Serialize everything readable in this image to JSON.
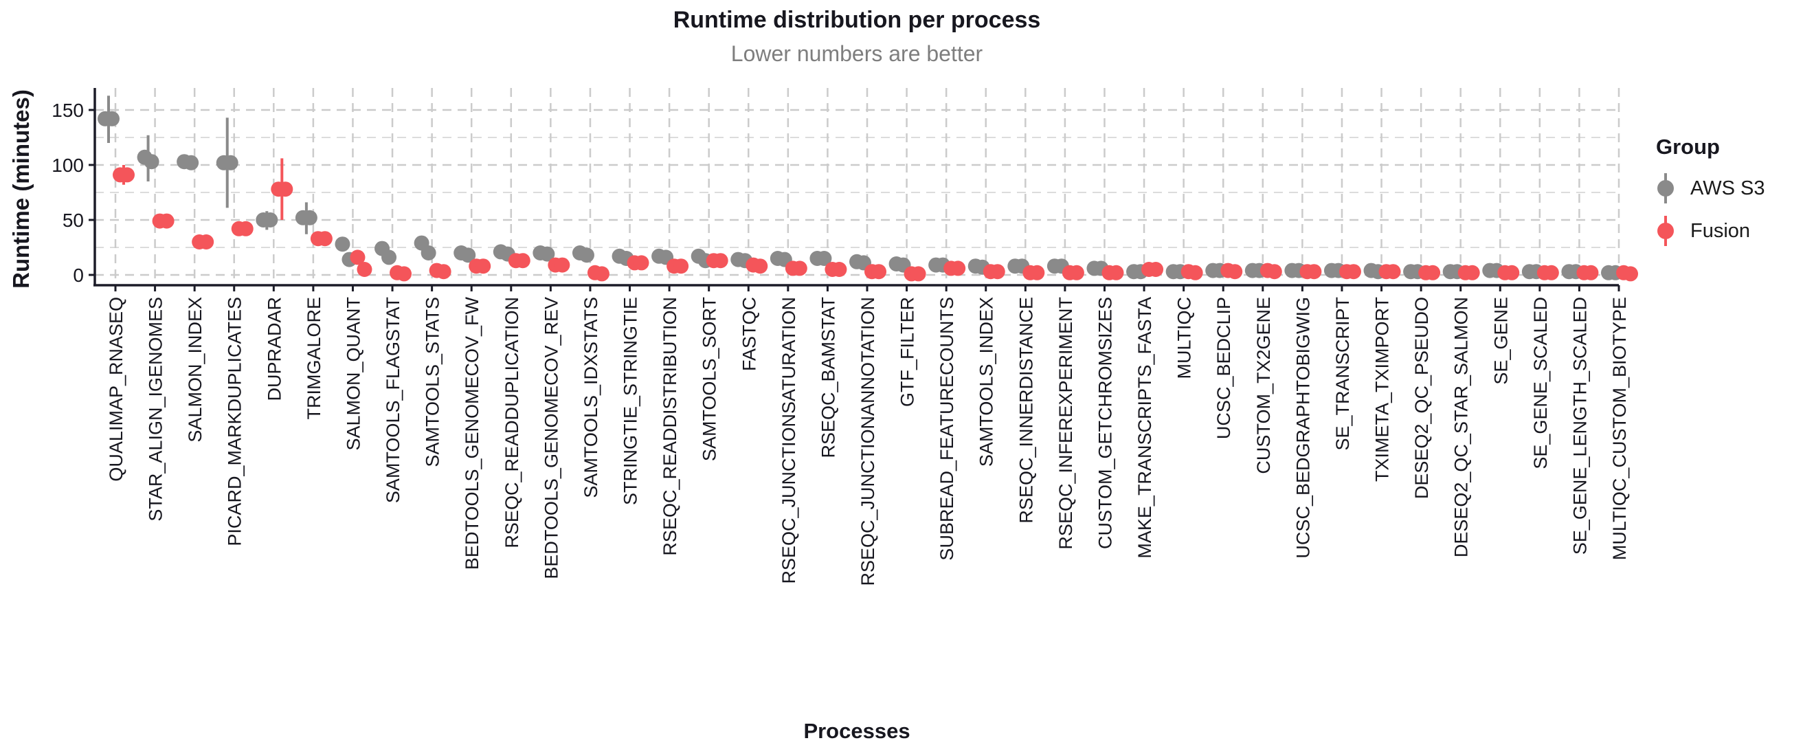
{
  "chart_data": {
    "type": "scatter",
    "title": "Runtime distribution per process",
    "subtitle": "Lower numbers are better",
    "xlabel": "Processes",
    "ylabel": "Runtime (minutes)",
    "ylim": [
      0,
      165
    ],
    "y_ticks": [
      0,
      50,
      100,
      150
    ],
    "grid": "dashed",
    "legend_position": "right",
    "legend": {
      "title": "Group",
      "entries": [
        {
          "label": "AWS S3",
          "color": "#8A8A8A"
        },
        {
          "label": "Fusion",
          "color": "#F4555A"
        }
      ]
    },
    "colors": {
      "aws_s3": "#8A8A8A",
      "fusion": "#F4555A",
      "grid": "#CBCBCB",
      "grid_minor": "#D8D8D8",
      "axis": "#1C1C28",
      "title_text": "#17171F",
      "subtitle_text": "#7E7E7E"
    },
    "categories": [
      "QUALIMAP_RNASEQ",
      "STAR_ALIGN_IGENOMES",
      "SALMON_INDEX",
      "PICARD_MARKDUPLICATES",
      "DUPRADAR",
      "TRIMGALORE",
      "SALMON_QUANT",
      "SAMTOOLS_FLAGSTAT",
      "SAMTOOLS_STATS",
      "BEDTOOLS_GENOMECOV_FW",
      "RSEQC_READDUPLICATION",
      "BEDTOOLS_GENOMECOV_REV",
      "SAMTOOLS_IDXSTATS",
      "STRINGTIE_STRINGTIE",
      "RSEQC_READDISTRIBUTION",
      "SAMTOOLS_SORT",
      "FASTQC",
      "RSEQC_JUNCTIONSATURATION",
      "RSEQC_BAMSTAT",
      "RSEQC_JUNCTIONANNOTATION",
      "GTF_FILTER",
      "SUBREAD_FEATURECOUNTS",
      "SAMTOOLS_INDEX",
      "RSEQC_INNERDISTANCE",
      "RSEQC_INFEREXPERIMENT",
      "CUSTOM_GETCHROMSIZES",
      "MAKE_TRANSCRIPTS_FASTA",
      "MULTIQC",
      "UCSC_BEDCLIP",
      "CUSTOM_TX2GENE",
      "UCSC_BEDGRAPHTOBIGWIG",
      "SE_TRANSCRIPT",
      "TXIMETA_TXIMPORT",
      "DESEQ2_QC_PSEUDO",
      "DESEQ2_QC_STAR_SALMON",
      "SE_GENE",
      "SE_GENE_SCALED",
      "SE_GENE_LENGTH_SCALED",
      "MULTIQC_CUSTOM_BIOTYPE"
    ],
    "series": [
      {
        "name": "AWS S3",
        "color": "#8A8A8A",
        "points": [
          {
            "runs": [
              142,
              142
            ],
            "range": [
              120,
              163
            ]
          },
          {
            "runs": [
              107,
              103
            ],
            "range": [
              85,
              127
            ]
          },
          {
            "runs": [
              103,
              102
            ],
            "range": null
          },
          {
            "runs": [
              102,
              102
            ],
            "range": [
              61,
              143
            ]
          },
          {
            "runs": [
              50,
              50
            ],
            "range": [
              41,
              58
            ]
          },
          {
            "runs": [
              52,
              52
            ],
            "range": [
              37,
              66
            ]
          },
          {
            "runs": [
              28,
              14
            ],
            "range": null
          },
          {
            "runs": [
              24,
              16
            ],
            "range": null
          },
          {
            "runs": [
              29,
              20
            ],
            "range": [
              18,
              31
            ]
          },
          {
            "runs": [
              20,
              18
            ],
            "range": null
          },
          {
            "runs": [
              21,
              19
            ],
            "range": null
          },
          {
            "runs": [
              20,
              19
            ],
            "range": null
          },
          {
            "runs": [
              20,
              18
            ],
            "range": [
              16,
              22
            ]
          },
          {
            "runs": [
              17,
              15
            ],
            "range": null
          },
          {
            "runs": [
              17,
              16
            ],
            "range": null
          },
          {
            "runs": [
              17,
              13
            ],
            "range": [
              8,
              21
            ]
          },
          {
            "runs": [
              14,
              13
            ],
            "range": null
          },
          {
            "runs": [
              15,
              14
            ],
            "range": null
          },
          {
            "runs": [
              15,
              15
            ],
            "range": null
          },
          {
            "runs": [
              12,
              11
            ],
            "range": null
          },
          {
            "runs": [
              10,
              9
            ],
            "range": null
          },
          {
            "runs": [
              9,
              9
            ],
            "range": null
          },
          {
            "runs": [
              8,
              7
            ],
            "range": null
          },
          {
            "runs": [
              8,
              8
            ],
            "range": null
          },
          {
            "runs": [
              8,
              8
            ],
            "range": null
          },
          {
            "runs": [
              6,
              6
            ],
            "range": null
          },
          {
            "runs": [
              3,
              3
            ],
            "range": null
          },
          {
            "runs": [
              3,
              3
            ],
            "range": null
          },
          {
            "runs": [
              4,
              4
            ],
            "range": null
          },
          {
            "runs": [
              4,
              4
            ],
            "range": null
          },
          {
            "runs": [
              4,
              4
            ],
            "range": null
          },
          {
            "runs": [
              4,
              4
            ],
            "range": null
          },
          {
            "runs": [
              4,
              3
            ],
            "range": null
          },
          {
            "runs": [
              3,
              3
            ],
            "range": null
          },
          {
            "runs": [
              3,
              3
            ],
            "range": null
          },
          {
            "runs": [
              4,
              4
            ],
            "range": [
              1,
              7
            ]
          },
          {
            "runs": [
              3,
              3
            ],
            "range": null
          },
          {
            "runs": [
              3,
              3
            ],
            "range": null
          },
          {
            "runs": [
              2,
              2
            ],
            "range": null
          }
        ]
      },
      {
        "name": "Fusion",
        "color": "#F4555A",
        "points": [
          {
            "runs": [
              91,
              91
            ],
            "range": [
              82,
              100
            ]
          },
          {
            "runs": [
              49,
              49
            ],
            "range": null
          },
          {
            "runs": [
              30,
              30
            ],
            "range": null
          },
          {
            "runs": [
              42,
              42
            ],
            "range": null
          },
          {
            "runs": [
              78,
              78
            ],
            "range": [
              50,
              106
            ]
          },
          {
            "runs": [
              33,
              33
            ],
            "range": null
          },
          {
            "runs": [
              16,
              5
            ],
            "range": null
          },
          {
            "runs": [
              2,
              1
            ],
            "range": null
          },
          {
            "runs": [
              4,
              3
            ],
            "range": null
          },
          {
            "runs": [
              8,
              8
            ],
            "range": null
          },
          {
            "runs": [
              13,
              13
            ],
            "range": null
          },
          {
            "runs": [
              9,
              9
            ],
            "range": null
          },
          {
            "runs": [
              2,
              1
            ],
            "range": null
          },
          {
            "runs": [
              11,
              11
            ],
            "range": null
          },
          {
            "runs": [
              8,
              8
            ],
            "range": null
          },
          {
            "runs": [
              13,
              13
            ],
            "range": null
          },
          {
            "runs": [
              9,
              8
            ],
            "range": null
          },
          {
            "runs": [
              6,
              6
            ],
            "range": null
          },
          {
            "runs": [
              5,
              5
            ],
            "range": null
          },
          {
            "runs": [
              3,
              3
            ],
            "range": null
          },
          {
            "runs": [
              1,
              1
            ],
            "range": null
          },
          {
            "runs": [
              6,
              6
            ],
            "range": null
          },
          {
            "runs": [
              3,
              3
            ],
            "range": null
          },
          {
            "runs": [
              2,
              2
            ],
            "range": null
          },
          {
            "runs": [
              2,
              2
            ],
            "range": null
          },
          {
            "runs": [
              2,
              2
            ],
            "range": null
          },
          {
            "runs": [
              5,
              5
            ],
            "range": null
          },
          {
            "runs": [
              3,
              2
            ],
            "range": null
          },
          {
            "runs": [
              4,
              3
            ],
            "range": null
          },
          {
            "runs": [
              4,
              3
            ],
            "range": null
          },
          {
            "runs": [
              3,
              3
            ],
            "range": null
          },
          {
            "runs": [
              3,
              3
            ],
            "range": null
          },
          {
            "runs": [
              3,
              3
            ],
            "range": null
          },
          {
            "runs": [
              2,
              2
            ],
            "range": null
          },
          {
            "runs": [
              2,
              2
            ],
            "range": null
          },
          {
            "runs": [
              2,
              2
            ],
            "range": null
          },
          {
            "runs": [
              2,
              2
            ],
            "range": null
          },
          {
            "runs": [
              2,
              2
            ],
            "range": null
          },
          {
            "runs": [
              2,
              1
            ],
            "range": null
          }
        ]
      }
    ]
  }
}
